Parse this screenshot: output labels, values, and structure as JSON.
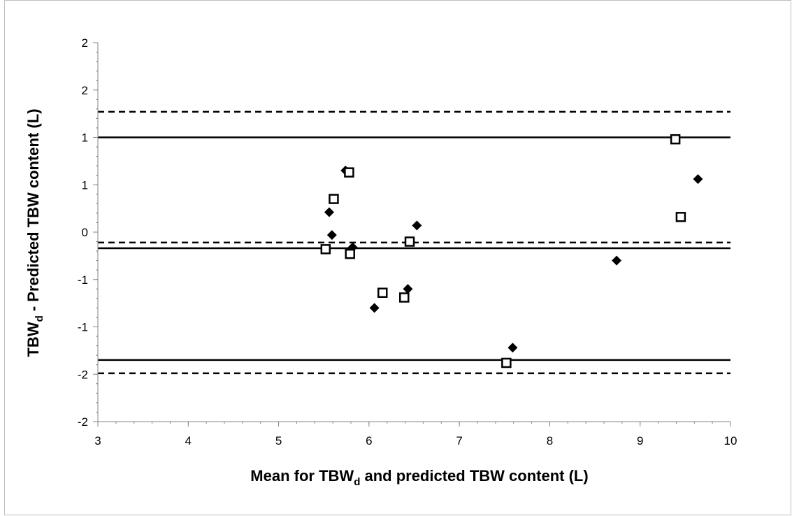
{
  "chart_data": {
    "type": "scatter",
    "xlabel_main": "Mean for TBW",
    "xlabel_sub": "d",
    "xlabel_rest": " and predicted TBW content (L)",
    "ylabel_main": "TBW",
    "ylabel_sub": "d",
    "ylabel_rest": " - Predicted TBW content (L)",
    "xlim": [
      3,
      10
    ],
    "ylim": [
      -2,
      2
    ],
    "x_ticks": [
      3,
      4,
      5,
      6,
      7,
      8,
      9,
      10
    ],
    "x_tick_labels": [
      "3",
      "4",
      "5",
      "6",
      "7",
      "8",
      "9",
      "10"
    ],
    "y_ticks": [
      2,
      1.5,
      1,
      0.5,
      0,
      -0.5,
      -1,
      -1.5,
      -2
    ],
    "y_tick_labels": [
      "2",
      "2",
      "1",
      "1",
      "0",
      "-1",
      "-1",
      "-2",
      "-2"
    ],
    "grid": false,
    "reference_lines": [
      {
        "y": 1.27,
        "style": "dashed"
      },
      {
        "y": 1.0,
        "style": "solid"
      },
      {
        "y": -0.11,
        "style": "dashed"
      },
      {
        "y": -0.17,
        "style": "solid"
      },
      {
        "y": -1.35,
        "style": "solid"
      },
      {
        "y": -1.49,
        "style": "dashed"
      }
    ],
    "series": [
      {
        "marker": "diamond-filled",
        "points": [
          [
            5.56,
            0.21
          ],
          [
            5.59,
            -0.03
          ],
          [
            5.74,
            0.65
          ],
          [
            5.82,
            -0.16
          ],
          [
            6.06,
            -0.8
          ],
          [
            6.43,
            -0.6
          ],
          [
            6.53,
            0.07
          ],
          [
            7.59,
            -1.22
          ],
          [
            8.74,
            -0.3
          ],
          [
            9.64,
            0.56
          ]
        ]
      },
      {
        "marker": "square-open",
        "points": [
          [
            5.52,
            -0.18
          ],
          [
            5.61,
            0.35
          ],
          [
            5.78,
            0.63
          ],
          [
            5.79,
            -0.23
          ],
          [
            6.15,
            -0.64
          ],
          [
            6.39,
            -0.69
          ],
          [
            6.45,
            -0.1
          ],
          [
            7.52,
            -1.38
          ],
          [
            9.39,
            0.98
          ],
          [
            9.45,
            0.16
          ]
        ]
      }
    ]
  }
}
